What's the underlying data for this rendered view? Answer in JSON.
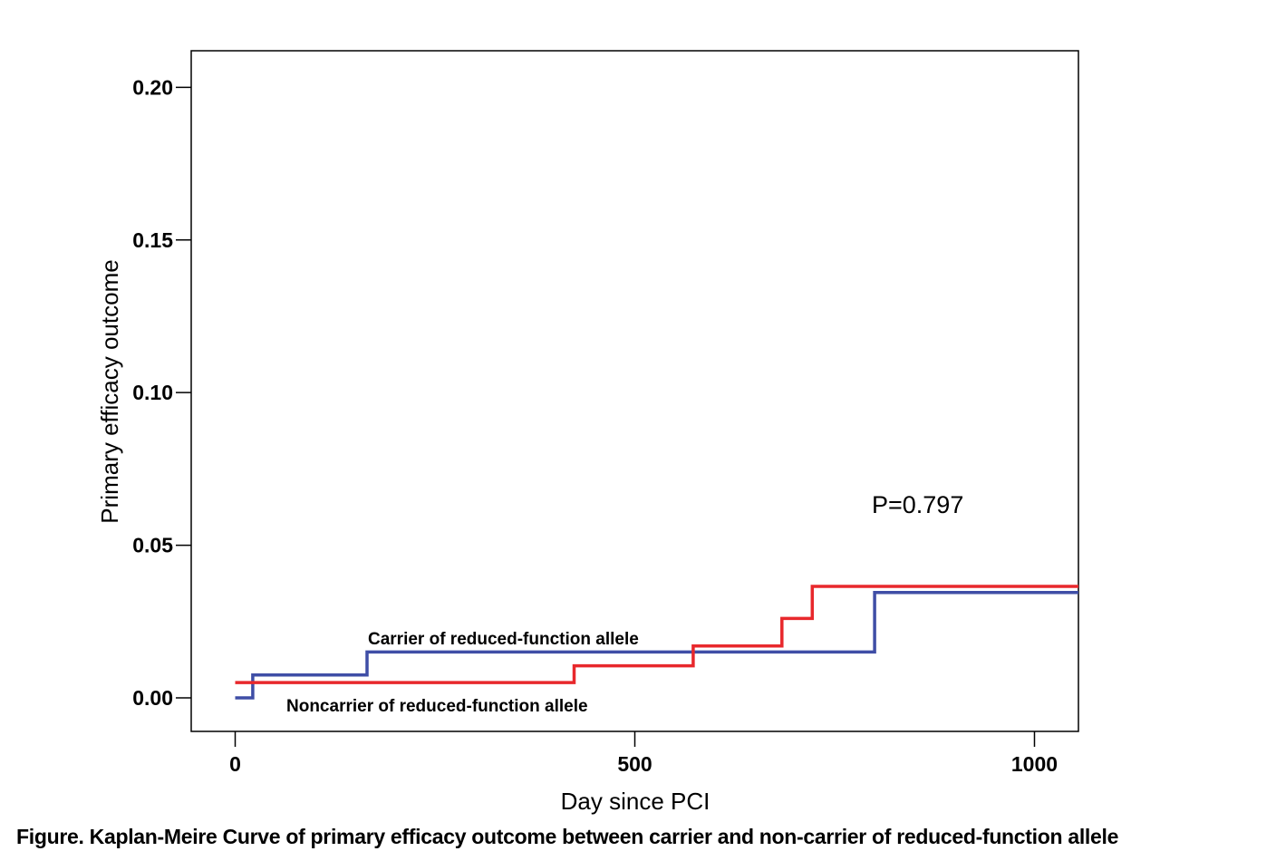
{
  "chart_data": {
    "type": "line",
    "step": true,
    "xlabel": "Day since PCI",
    "ylabel": "Primary efficacy outcome",
    "xlim": [
      -55,
      1055
    ],
    "ylim": [
      -0.011,
      0.212
    ],
    "xticks": [
      0,
      500,
      1000
    ],
    "xtick_labels": [
      "0",
      "500",
      "1000"
    ],
    "yticks": [
      0.0,
      0.05,
      0.1,
      0.15,
      0.2
    ],
    "ytick_labels": [
      "0.00",
      "0.05",
      "0.10",
      "0.15",
      "0.20"
    ],
    "grid": false,
    "series": [
      {
        "name": "Carrier of reduced-function allele",
        "color": "#3f4ea6",
        "x": [
          0,
          22,
          22,
          165,
          165,
          800,
          800,
          1055
        ],
        "y": [
          0.0,
          0.0,
          0.0075,
          0.0075,
          0.015,
          0.015,
          0.0345,
          0.0345
        ]
      },
      {
        "name": "Noncarrier of reduced-function allele",
        "color": "#e8282c",
        "x": [
          0,
          424,
          424,
          573,
          573,
          684,
          684,
          722,
          722,
          1055
        ],
        "y": [
          0.005,
          0.005,
          0.0105,
          0.0105,
          0.017,
          0.017,
          0.026,
          0.026,
          0.0365,
          0.0365
        ]
      }
    ],
    "annotations": {
      "p_value": "P=0.797",
      "carrier_label": "Carrier of reduced-function allele",
      "noncarrier_label": "Noncarrier of reduced-function allele"
    },
    "caption": "Figure. Kaplan-Meire Curve of primary efficacy outcome between carrier and non-carrier of reduced-function allele"
  }
}
